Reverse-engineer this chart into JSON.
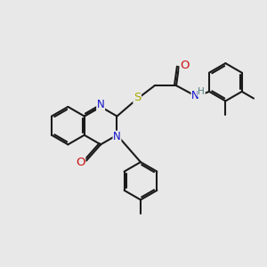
{
  "bg_color": "#e8e8e8",
  "bond_color": "#1a1a1a",
  "bond_width": 1.5,
  "dbo": 0.07,
  "N_color": "#1010cc",
  "O_color": "#cc1010",
  "S_color": "#aaaa00",
  "H_color": "#4d8080",
  "font_size": 8.5,
  "fig_size": [
    3.0,
    3.0
  ],
  "dpi": 100,
  "xlim": [
    0,
    10
  ],
  "ylim": [
    0,
    10
  ]
}
